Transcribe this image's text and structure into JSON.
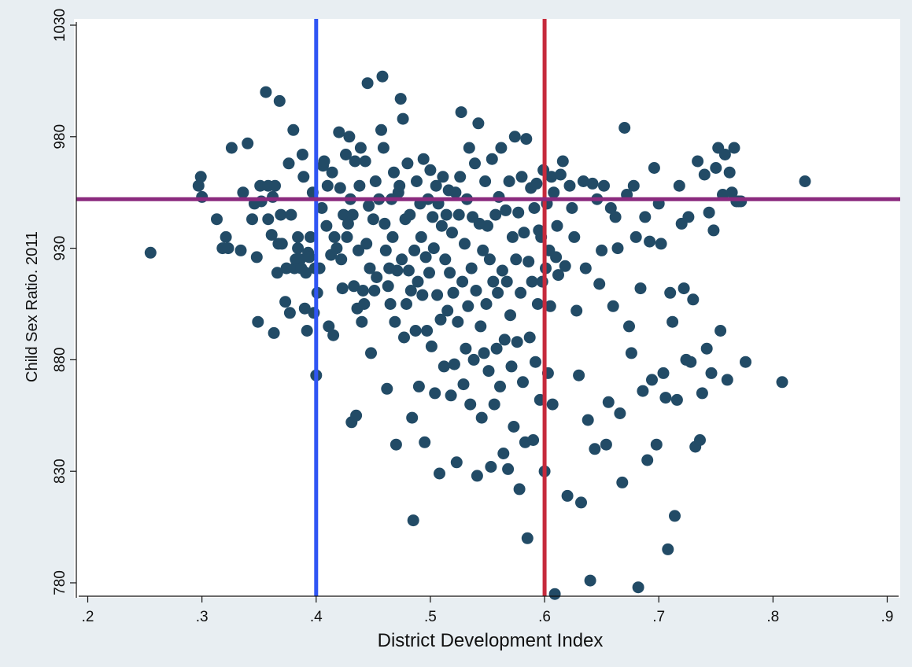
{
  "chart_data": {
    "type": "scatter",
    "xlabel": "District Development Index",
    "ylabel": "Child Sex Ratio. 2011",
    "xlim": [
      0.19,
      0.91
    ],
    "ylim": [
      774,
      1030
    ],
    "x_ticks": [
      {
        "value": 0.2,
        "label": ".2"
      },
      {
        "value": 0.3,
        "label": ".3"
      },
      {
        "value": 0.4,
        "label": ".4"
      },
      {
        "value": 0.5,
        "label": ".5"
      },
      {
        "value": 0.6,
        "label": ".6"
      },
      {
        "value": 0.7,
        "label": ".7"
      },
      {
        "value": 0.8,
        "label": ".8"
      },
      {
        "value": 0.9,
        "label": ".9"
      }
    ],
    "y_ticks": [
      {
        "value": 780,
        "label": "780"
      },
      {
        "value": 830,
        "label": "830"
      },
      {
        "value": 880,
        "label": "880"
      },
      {
        "value": 930,
        "label": "930"
      },
      {
        "value": 980,
        "label": "980"
      },
      {
        "value": 1030,
        "label": "1030"
      }
    ],
    "grid": false,
    "reference_lines": [
      {
        "orientation": "vertical",
        "value": 0.4,
        "color": "#2f55f4"
      },
      {
        "orientation": "vertical",
        "value": 0.6,
        "color": "#c62a3c"
      },
      {
        "orientation": "horizontal",
        "value": 952,
        "color": "#8b2a7e"
      }
    ],
    "marker_color": "#224b66",
    "frame_color": "#e8eef2",
    "points": [
      [
        0.255,
        928
      ],
      [
        0.297,
        958
      ],
      [
        0.299,
        962
      ],
      [
        0.3,
        953
      ],
      [
        0.313,
        943
      ],
      [
        0.318,
        930
      ],
      [
        0.321,
        935
      ],
      [
        0.323,
        930
      ],
      [
        0.326,
        975
      ],
      [
        0.334,
        929
      ],
      [
        0.336,
        955
      ],
      [
        0.34,
        977
      ],
      [
        0.344,
        943
      ],
      [
        0.346,
        950
      ],
      [
        0.348,
        926
      ],
      [
        0.349,
        897
      ],
      [
        0.351,
        958
      ],
      [
        0.352,
        951
      ],
      [
        0.356,
        1000
      ],
      [
        0.358,
        943
      ],
      [
        0.358,
        958
      ],
      [
        0.361,
        936
      ],
      [
        0.362,
        953
      ],
      [
        0.363,
        892
      ],
      [
        0.364,
        958
      ],
      [
        0.366,
        919
      ],
      [
        0.367,
        932
      ],
      [
        0.368,
        996
      ],
      [
        0.369,
        945
      ],
      [
        0.37,
        932
      ],
      [
        0.373,
        906
      ],
      [
        0.374,
        921
      ],
      [
        0.376,
        968
      ],
      [
        0.377,
        901
      ],
      [
        0.378,
        945
      ],
      [
        0.38,
        983
      ],
      [
        0.381,
        921
      ],
      [
        0.382,
        925
      ],
      [
        0.384,
        935
      ],
      [
        0.384,
        930
      ],
      [
        0.386,
        925
      ],
      [
        0.387,
        921
      ],
      [
        0.388,
        972
      ],
      [
        0.389,
        962
      ],
      [
        0.39,
        903
      ],
      [
        0.391,
        919
      ],
      [
        0.392,
        893
      ],
      [
        0.393,
        928
      ],
      [
        0.394,
        926
      ],
      [
        0.395,
        935
      ],
      [
        0.397,
        955
      ],
      [
        0.398,
        901
      ],
      [
        0.399,
        921
      ],
      [
        0.4,
        873
      ],
      [
        0.401,
        910
      ],
      [
        0.403,
        921
      ],
      [
        0.405,
        948
      ],
      [
        0.406,
        967
      ],
      [
        0.407,
        969
      ],
      [
        0.409,
        940
      ],
      [
        0.41,
        958
      ],
      [
        0.411,
        895
      ],
      [
        0.413,
        927
      ],
      [
        0.414,
        964
      ],
      [
        0.415,
        891
      ],
      [
        0.416,
        935
      ],
      [
        0.418,
        930
      ],
      [
        0.42,
        982
      ],
      [
        0.421,
        957
      ],
      [
        0.422,
        925
      ],
      [
        0.423,
        912
      ],
      [
        0.424,
        945
      ],
      [
        0.426,
        972
      ],
      [
        0.427,
        935
      ],
      [
        0.428,
        941
      ],
      [
        0.429,
        980
      ],
      [
        0.43,
        952
      ],
      [
        0.431,
        852
      ],
      [
        0.432,
        945
      ],
      [
        0.433,
        913
      ],
      [
        0.434,
        969
      ],
      [
        0.435,
        855
      ],
      [
        0.436,
        903
      ],
      [
        0.437,
        929
      ],
      [
        0.438,
        958
      ],
      [
        0.439,
        975
      ],
      [
        0.44,
        897
      ],
      [
        0.441,
        911
      ],
      [
        0.442,
        905
      ],
      [
        0.443,
        969
      ],
      [
        0.444,
        932
      ],
      [
        0.445,
        1004
      ],
      [
        0.446,
        949
      ],
      [
        0.447,
        921
      ],
      [
        0.448,
        883
      ],
      [
        0.45,
        943
      ],
      [
        0.451,
        911
      ],
      [
        0.452,
        960
      ],
      [
        0.453,
        917
      ],
      [
        0.455,
        952
      ],
      [
        0.457,
        983
      ],
      [
        0.458,
        1007
      ],
      [
        0.459,
        975
      ],
      [
        0.46,
        941
      ],
      [
        0.461,
        929
      ],
      [
        0.462,
        867
      ],
      [
        0.463,
        913
      ],
      [
        0.464,
        921
      ],
      [
        0.465,
        905
      ],
      [
        0.466,
        952
      ],
      [
        0.467,
        935
      ],
      [
        0.468,
        964
      ],
      [
        0.469,
        897
      ],
      [
        0.47,
        842
      ],
      [
        0.471,
        920
      ],
      [
        0.472,
        955
      ],
      [
        0.473,
        958
      ],
      [
        0.474,
        997
      ],
      [
        0.475,
        925
      ],
      [
        0.476,
        988
      ],
      [
        0.477,
        890
      ],
      [
        0.478,
        943
      ],
      [
        0.479,
        905
      ],
      [
        0.48,
        968
      ],
      [
        0.481,
        920
      ],
      [
        0.482,
        945
      ],
      [
        0.483,
        911
      ],
      [
        0.484,
        854
      ],
      [
        0.485,
        808
      ],
      [
        0.486,
        929
      ],
      [
        0.487,
        893
      ],
      [
        0.488,
        960
      ],
      [
        0.489,
        915
      ],
      [
        0.49,
        868
      ],
      [
        0.491,
        950
      ],
      [
        0.492,
        935
      ],
      [
        0.493,
        909
      ],
      [
        0.494,
        970
      ],
      [
        0.495,
        843
      ],
      [
        0.496,
        926
      ],
      [
        0.497,
        893
      ],
      [
        0.498,
        952
      ],
      [
        0.499,
        919
      ],
      [
        0.5,
        965
      ],
      [
        0.501,
        886
      ],
      [
        0.502,
        944
      ],
      [
        0.503,
        930
      ],
      [
        0.504,
        865
      ],
      [
        0.505,
        958
      ],
      [
        0.506,
        909
      ],
      [
        0.507,
        950
      ],
      [
        0.508,
        829
      ],
      [
        0.509,
        898
      ],
      [
        0.51,
        940
      ],
      [
        0.511,
        962
      ],
      [
        0.512,
        877
      ],
      [
        0.513,
        925
      ],
      [
        0.514,
        945
      ],
      [
        0.515,
        902
      ],
      [
        0.516,
        956
      ],
      [
        0.517,
        919
      ],
      [
        0.518,
        864
      ],
      [
        0.519,
        937
      ],
      [
        0.52,
        910
      ],
      [
        0.521,
        878
      ],
      [
        0.522,
        955
      ],
      [
        0.523,
        834
      ],
      [
        0.524,
        897
      ],
      [
        0.525,
        945
      ],
      [
        0.526,
        962
      ],
      [
        0.527,
        991
      ],
      [
        0.528,
        915
      ],
      [
        0.529,
        869
      ],
      [
        0.53,
        932
      ],
      [
        0.531,
        885
      ],
      [
        0.532,
        952
      ],
      [
        0.533,
        904
      ],
      [
        0.534,
        975
      ],
      [
        0.535,
        860
      ],
      [
        0.536,
        921
      ],
      [
        0.537,
        944
      ],
      [
        0.538,
        880
      ],
      [
        0.539,
        968
      ],
      [
        0.54,
        911
      ],
      [
        0.541,
        828
      ],
      [
        0.542,
        986
      ],
      [
        0.543,
        941
      ],
      [
        0.544,
        895
      ],
      [
        0.545,
        854
      ],
      [
        0.546,
        929
      ],
      [
        0.547,
        883
      ],
      [
        0.548,
        960
      ],
      [
        0.549,
        905
      ],
      [
        0.55,
        940
      ],
      [
        0.551,
        875
      ],
      [
        0.552,
        925
      ],
      [
        0.553,
        832
      ],
      [
        0.554,
        970
      ],
      [
        0.555,
        915
      ],
      [
        0.556,
        860
      ],
      [
        0.557,
        945
      ],
      [
        0.558,
        885
      ],
      [
        0.559,
        910
      ],
      [
        0.56,
        953
      ],
      [
        0.561,
        868
      ],
      [
        0.562,
        975
      ],
      [
        0.563,
        920
      ],
      [
        0.564,
        838
      ],
      [
        0.565,
        889
      ],
      [
        0.566,
        947
      ],
      [
        0.567,
        915
      ],
      [
        0.568,
        831
      ],
      [
        0.569,
        960
      ],
      [
        0.57,
        900
      ],
      [
        0.571,
        877
      ],
      [
        0.572,
        935
      ],
      [
        0.573,
        850
      ],
      [
        0.574,
        980
      ],
      [
        0.575,
        925
      ],
      [
        0.576,
        888
      ],
      [
        0.577,
        946
      ],
      [
        0.578,
        822
      ],
      [
        0.579,
        910
      ],
      [
        0.58,
        962
      ],
      [
        0.581,
        870
      ],
      [
        0.582,
        937
      ],
      [
        0.583,
        843
      ],
      [
        0.584,
        979
      ],
      [
        0.585,
        800
      ],
      [
        0.586,
        924
      ],
      [
        0.587,
        890
      ],
      [
        0.588,
        957
      ],
      [
        0.589,
        915
      ],
      [
        0.59,
        844
      ],
      [
        0.591,
        948
      ],
      [
        0.592,
        879
      ],
      [
        0.593,
        959
      ],
      [
        0.594,
        905
      ],
      [
        0.595,
        938
      ],
      [
        0.596,
        862
      ],
      [
        0.597,
        935
      ],
      [
        0.598,
        915
      ],
      [
        0.599,
        965
      ],
      [
        0.6,
        830
      ],
      [
        0.601,
        921
      ],
      [
        0.602,
        950
      ],
      [
        0.603,
        874
      ],
      [
        0.604,
        929
      ],
      [
        0.605,
        904
      ],
      [
        0.606,
        962
      ],
      [
        0.607,
        860
      ],
      [
        0.608,
        955
      ],
      [
        0.609,
        775
      ],
      [
        0.61,
        926
      ],
      [
        0.611,
        940
      ],
      [
        0.612,
        918
      ],
      [
        0.614,
        963
      ],
      [
        0.616,
        969
      ],
      [
        0.618,
        922
      ],
      [
        0.62,
        819
      ],
      [
        0.622,
        958
      ],
      [
        0.624,
        948
      ],
      [
        0.626,
        935
      ],
      [
        0.628,
        902
      ],
      [
        0.63,
        873
      ],
      [
        0.632,
        816
      ],
      [
        0.634,
        960
      ],
      [
        0.636,
        921
      ],
      [
        0.638,
        853
      ],
      [
        0.64,
        781
      ],
      [
        0.642,
        959
      ],
      [
        0.644,
        840
      ],
      [
        0.646,
        952
      ],
      [
        0.648,
        914
      ],
      [
        0.65,
        929
      ],
      [
        0.652,
        958
      ],
      [
        0.654,
        842
      ],
      [
        0.656,
        861
      ],
      [
        0.658,
        948
      ],
      [
        0.66,
        904
      ],
      [
        0.662,
        944
      ],
      [
        0.664,
        930
      ],
      [
        0.666,
        856
      ],
      [
        0.668,
        825
      ],
      [
        0.67,
        984
      ],
      [
        0.672,
        954
      ],
      [
        0.674,
        895
      ],
      [
        0.676,
        883
      ],
      [
        0.678,
        958
      ],
      [
        0.68,
        935
      ],
      [
        0.682,
        778
      ],
      [
        0.684,
        912
      ],
      [
        0.686,
        866
      ],
      [
        0.688,
        944
      ],
      [
        0.69,
        835
      ],
      [
        0.692,
        933
      ],
      [
        0.694,
        871
      ],
      [
        0.696,
        966
      ],
      [
        0.698,
        842
      ],
      [
        0.7,
        950
      ],
      [
        0.702,
        932
      ],
      [
        0.704,
        874
      ],
      [
        0.706,
        863
      ],
      [
        0.708,
        795
      ],
      [
        0.71,
        910
      ],
      [
        0.712,
        897
      ],
      [
        0.714,
        810
      ],
      [
        0.716,
        862
      ],
      [
        0.718,
        958
      ],
      [
        0.72,
        941
      ],
      [
        0.722,
        912
      ],
      [
        0.724,
        880
      ],
      [
        0.726,
        944
      ],
      [
        0.728,
        879
      ],
      [
        0.73,
        907
      ],
      [
        0.732,
        841
      ],
      [
        0.734,
        969
      ],
      [
        0.736,
        844
      ],
      [
        0.738,
        865
      ],
      [
        0.74,
        963
      ],
      [
        0.742,
        885
      ],
      [
        0.744,
        946
      ],
      [
        0.746,
        874
      ],
      [
        0.748,
        938
      ],
      [
        0.75,
        966
      ],
      [
        0.752,
        975
      ],
      [
        0.754,
        893
      ],
      [
        0.756,
        954
      ],
      [
        0.758,
        972
      ],
      [
        0.76,
        871
      ],
      [
        0.762,
        964
      ],
      [
        0.764,
        955
      ],
      [
        0.766,
        975
      ],
      [
        0.768,
        951
      ],
      [
        0.77,
        951
      ],
      [
        0.772,
        951
      ],
      [
        0.776,
        879
      ],
      [
        0.808,
        870
      ],
      [
        0.828,
        960
      ]
    ]
  }
}
